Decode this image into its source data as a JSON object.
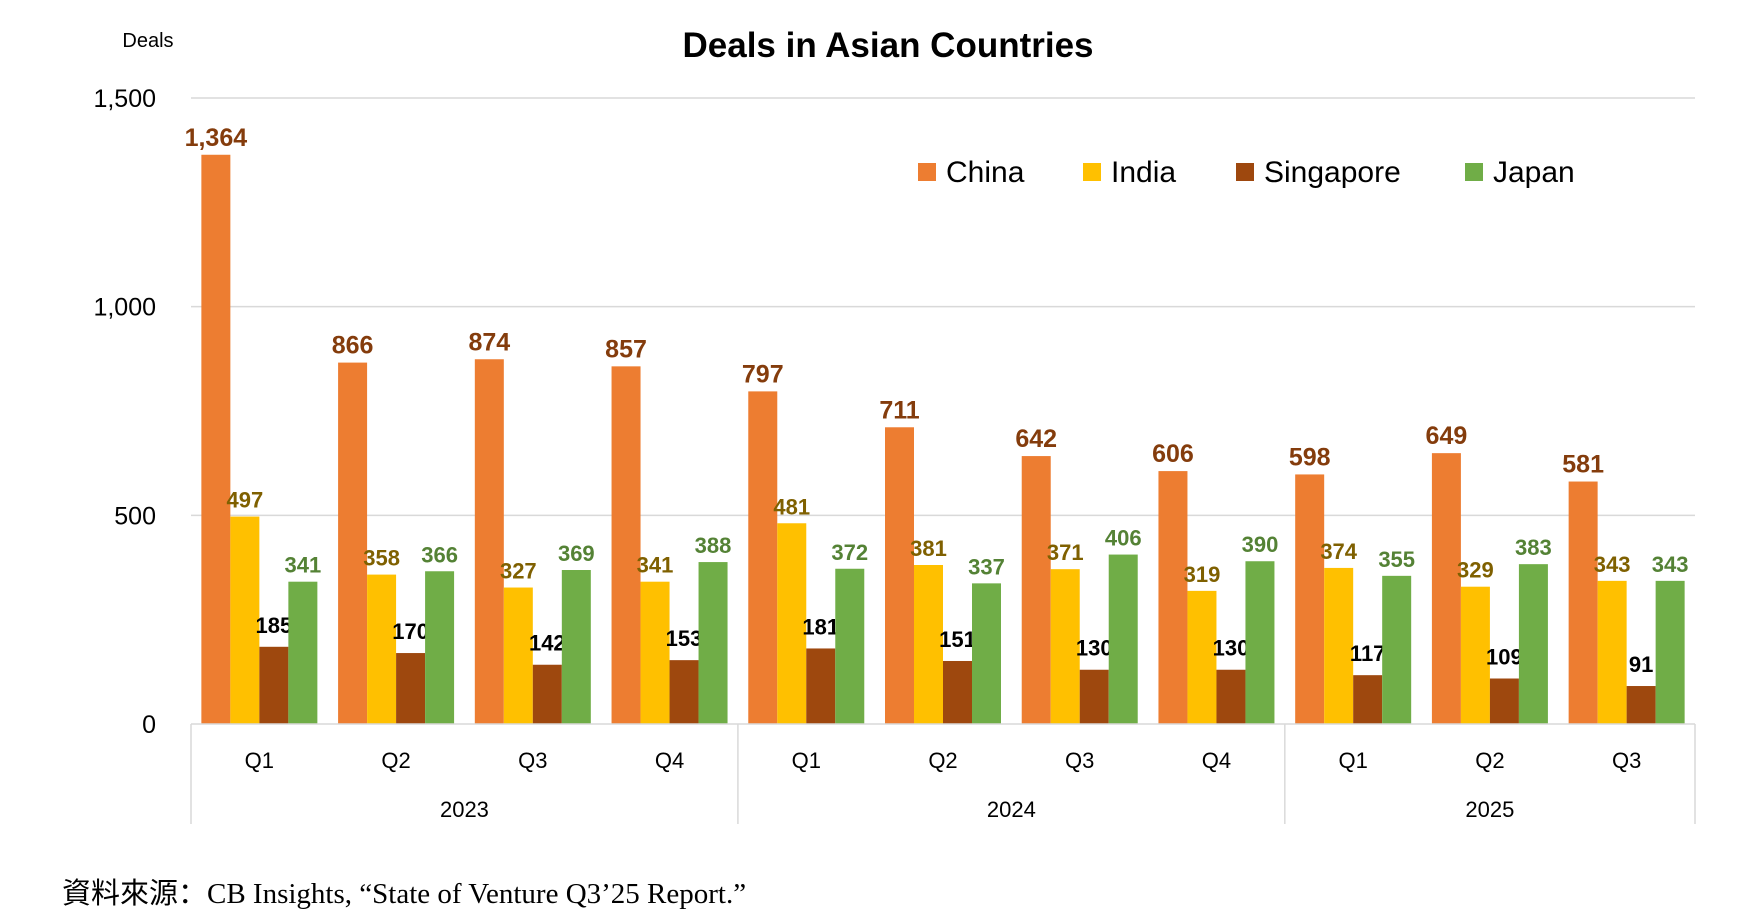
{
  "chart_data": {
    "type": "bar",
    "title": "Deals in Asian Countries",
    "ylabel": "Deals",
    "xlabel": "",
    "ylim": [
      0,
      1500
    ],
    "yticks": [
      0,
      500,
      1000,
      1500
    ],
    "ytick_labels": [
      "0",
      "500",
      "1,000",
      "1,500"
    ],
    "grid": true,
    "legend": "top-right",
    "categories": [
      "Q1",
      "Q2",
      "Q3",
      "Q4",
      "Q1",
      "Q2",
      "Q3",
      "Q4",
      "Q1",
      "Q2",
      "Q3"
    ],
    "category_groups": [
      {
        "label": "2023",
        "count": 4
      },
      {
        "label": "2024",
        "count": 4
      },
      {
        "label": "2025",
        "count": 3
      }
    ],
    "series": [
      {
        "name": "China",
        "color": "#ED7D31",
        "label_color": "#843C0C",
        "values": [
          1364,
          866,
          874,
          857,
          797,
          711,
          642,
          606,
          598,
          649,
          581
        ]
      },
      {
        "name": "India",
        "color": "#FFC000",
        "label_color": "#7F6000",
        "values": [
          497,
          358,
          327,
          341,
          481,
          381,
          371,
          319,
          374,
          329,
          343
        ]
      },
      {
        "name": "Singapore",
        "color": "#9E480E",
        "label_color": "#000000",
        "values": [
          185,
          170,
          142,
          153,
          181,
          151,
          130,
          130,
          117,
          109,
          91
        ]
      },
      {
        "name": "Japan",
        "color": "#70AD47",
        "label_color": "#548235",
        "values": [
          341,
          366,
          369,
          388,
          372,
          337,
          406,
          390,
          355,
          383,
          343
        ]
      }
    ]
  },
  "source": "資料來源：CB Insights, “State of Venture Q3’25 Report.”"
}
